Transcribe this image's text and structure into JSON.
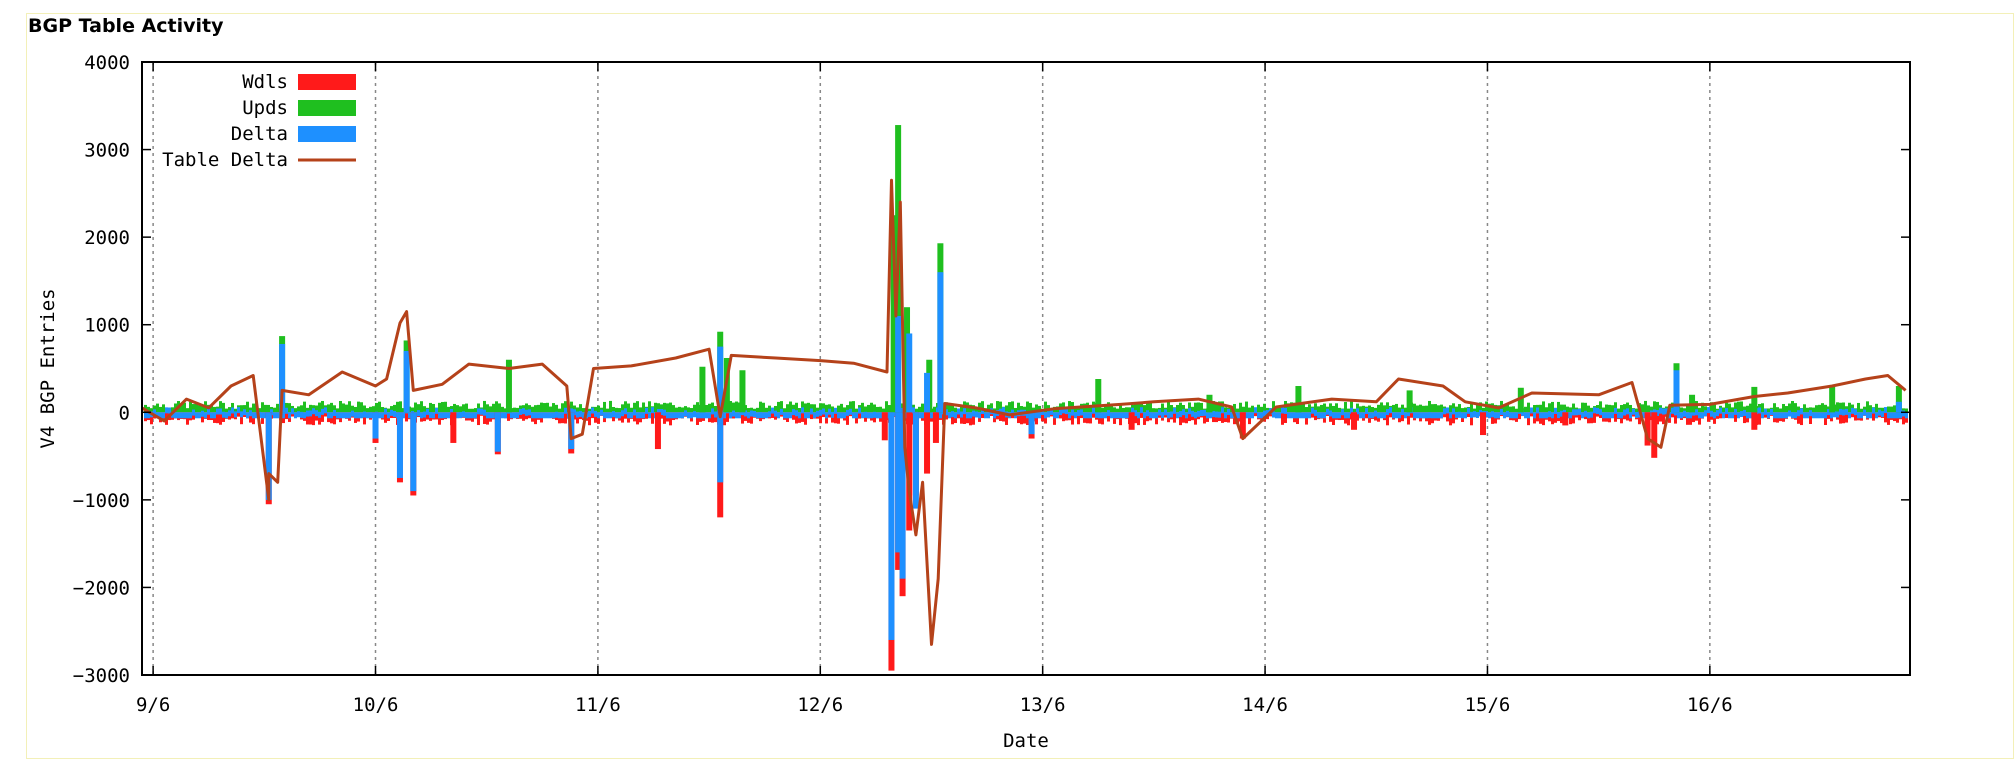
{
  "panel": {
    "title": "BGP Table Activity"
  },
  "chart_data": {
    "type": "bar",
    "title": "",
    "xlabel": "Date",
    "ylabel": "V4 BGP Entries",
    "ylim": [
      -3000,
      4000
    ],
    "yticks": [
      4000,
      3000,
      2000,
      1000,
      0,
      -1000,
      -2000,
      -3000
    ],
    "xlim": [
      8.95,
      16.9
    ],
    "xticks": [
      {
        "value": 9,
        "label": "9/6"
      },
      {
        "value": 10,
        "label": "10/6"
      },
      {
        "value": 11,
        "label": "11/6"
      },
      {
        "value": 12,
        "label": "12/6"
      },
      {
        "value": 13,
        "label": "13/6"
      },
      {
        "value": 14,
        "label": "14/6"
      },
      {
        "value": 15,
        "label": "15/6"
      },
      {
        "value": 16,
        "label": "16/6"
      }
    ],
    "grid": "vertical dotted",
    "legend_position": "top-left",
    "series": [
      {
        "name": "Wdls",
        "type": "bar",
        "color": "#ff1a1a",
        "points": [
          {
            "x": 9.52,
            "y": -1050
          },
          {
            "x": 10.0,
            "y": -350
          },
          {
            "x": 10.11,
            "y": -800
          },
          {
            "x": 10.17,
            "y": -950
          },
          {
            "x": 10.35,
            "y": -350
          },
          {
            "x": 10.55,
            "y": -480
          },
          {
            "x": 10.88,
            "y": -470
          },
          {
            "x": 11.27,
            "y": -420
          },
          {
            "x": 11.55,
            "y": -1200
          },
          {
            "x": 12.29,
            "y": -320
          },
          {
            "x": 12.32,
            "y": -2950
          },
          {
            "x": 12.35,
            "y": -1800
          },
          {
            "x": 12.37,
            "y": -2100
          },
          {
            "x": 12.4,
            "y": -1350
          },
          {
            "x": 12.43,
            "y": -950
          },
          {
            "x": 12.48,
            "y": -700
          },
          {
            "x": 12.52,
            "y": -350
          },
          {
            "x": 12.95,
            "y": -300
          },
          {
            "x": 13.4,
            "y": -200
          },
          {
            "x": 13.9,
            "y": -300
          },
          {
            "x": 14.4,
            "y": -200
          },
          {
            "x": 14.98,
            "y": -260
          },
          {
            "x": 15.35,
            "y": -150
          },
          {
            "x": 15.72,
            "y": -380
          },
          {
            "x": 15.75,
            "y": -520
          },
          {
            "x": 16.2,
            "y": -200
          }
        ]
      },
      {
        "name": "Upds",
        "type": "bar",
        "color": "#1fbf1f",
        "points": [
          {
            "x": 9.58,
            "y": 870
          },
          {
            "x": 10.14,
            "y": 820
          },
          {
            "x": 10.6,
            "y": 600
          },
          {
            "x": 11.47,
            "y": 520
          },
          {
            "x": 11.55,
            "y": 920
          },
          {
            "x": 11.58,
            "y": 620
          },
          {
            "x": 11.65,
            "y": 480
          },
          {
            "x": 12.35,
            "y": 3280
          },
          {
            "x": 12.33,
            "y": 2250
          },
          {
            "x": 12.39,
            "y": 1200
          },
          {
            "x": 12.49,
            "y": 600
          },
          {
            "x": 12.54,
            "y": 1930
          },
          {
            "x": 13.25,
            "y": 380
          },
          {
            "x": 13.75,
            "y": 200
          },
          {
            "x": 14.15,
            "y": 300
          },
          {
            "x": 14.65,
            "y": 250
          },
          {
            "x": 15.15,
            "y": 280
          },
          {
            "x": 15.85,
            "y": 560
          },
          {
            "x": 15.92,
            "y": 200
          },
          {
            "x": 16.2,
            "y": 290
          },
          {
            "x": 16.55,
            "y": 290
          },
          {
            "x": 16.85,
            "y": 300
          }
        ]
      },
      {
        "name": "Delta",
        "type": "bar",
        "color": "#1e90ff",
        "points": [
          {
            "x": 9.52,
            "y": -1000
          },
          {
            "x": 9.58,
            "y": 780
          },
          {
            "x": 10.0,
            "y": -300
          },
          {
            "x": 10.11,
            "y": -750
          },
          {
            "x": 10.14,
            "y": 700
          },
          {
            "x": 10.17,
            "y": -900
          },
          {
            "x": 10.55,
            "y": -450
          },
          {
            "x": 10.88,
            "y": -420
          },
          {
            "x": 11.55,
            "y": -800
          },
          {
            "x": 11.55,
            "y": 750
          },
          {
            "x": 12.32,
            "y": -2600
          },
          {
            "x": 12.35,
            "y": -1600
          },
          {
            "x": 12.35,
            "y": 1100
          },
          {
            "x": 12.37,
            "y": -1900
          },
          {
            "x": 12.4,
            "y": 900
          },
          {
            "x": 12.43,
            "y": -1100
          },
          {
            "x": 12.48,
            "y": 450
          },
          {
            "x": 12.54,
            "y": 1600
          },
          {
            "x": 12.95,
            "y": -250
          },
          {
            "x": 15.85,
            "y": 480
          },
          {
            "x": 16.85,
            "y": 120
          }
        ]
      },
      {
        "name": "Table Delta",
        "type": "line",
        "color": "#b5421a",
        "points": [
          {
            "x": 8.95,
            "y": 50
          },
          {
            "x": 9.05,
            "y": -100
          },
          {
            "x": 9.15,
            "y": 150
          },
          {
            "x": 9.25,
            "y": 50
          },
          {
            "x": 9.35,
            "y": 300
          },
          {
            "x": 9.45,
            "y": 420
          },
          {
            "x": 9.52,
            "y": -1000
          },
          {
            "x": 9.52,
            "y": -700
          },
          {
            "x": 9.56,
            "y": -800
          },
          {
            "x": 9.58,
            "y": 250
          },
          {
            "x": 9.7,
            "y": 200
          },
          {
            "x": 9.85,
            "y": 460
          },
          {
            "x": 10.0,
            "y": 300
          },
          {
            "x": 10.05,
            "y": 380
          },
          {
            "x": 10.11,
            "y": 1020
          },
          {
            "x": 10.14,
            "y": 1150
          },
          {
            "x": 10.17,
            "y": 250
          },
          {
            "x": 10.3,
            "y": 320
          },
          {
            "x": 10.42,
            "y": 550
          },
          {
            "x": 10.6,
            "y": 500
          },
          {
            "x": 10.75,
            "y": 550
          },
          {
            "x": 10.86,
            "y": 300
          },
          {
            "x": 10.88,
            "y": -300
          },
          {
            "x": 10.93,
            "y": -250
          },
          {
            "x": 10.98,
            "y": 500
          },
          {
            "x": 11.15,
            "y": 530
          },
          {
            "x": 11.35,
            "y": 620
          },
          {
            "x": 11.5,
            "y": 720
          },
          {
            "x": 11.55,
            "y": -50
          },
          {
            "x": 11.6,
            "y": 650
          },
          {
            "x": 11.8,
            "y": 620
          },
          {
            "x": 12.0,
            "y": 590
          },
          {
            "x": 12.15,
            "y": 560
          },
          {
            "x": 12.3,
            "y": 460
          },
          {
            "x": 12.32,
            "y": 2650
          },
          {
            "x": 12.34,
            "y": 1100
          },
          {
            "x": 12.36,
            "y": 2400
          },
          {
            "x": 12.38,
            "y": -400
          },
          {
            "x": 12.4,
            "y": -900
          },
          {
            "x": 12.43,
            "y": -1400
          },
          {
            "x": 12.46,
            "y": -800
          },
          {
            "x": 12.5,
            "y": -2650
          },
          {
            "x": 12.53,
            "y": -1900
          },
          {
            "x": 12.56,
            "y": 100
          },
          {
            "x": 12.7,
            "y": 50
          },
          {
            "x": 12.85,
            "y": -30
          },
          {
            "x": 13.05,
            "y": 40
          },
          {
            "x": 13.35,
            "y": 90
          },
          {
            "x": 13.5,
            "y": 120
          },
          {
            "x": 13.7,
            "y": 150
          },
          {
            "x": 13.85,
            "y": 60
          },
          {
            "x": 13.9,
            "y": -300
          },
          {
            "x": 14.05,
            "y": 60
          },
          {
            "x": 14.3,
            "y": 150
          },
          {
            "x": 14.5,
            "y": 120
          },
          {
            "x": 14.6,
            "y": 380
          },
          {
            "x": 14.8,
            "y": 300
          },
          {
            "x": 14.9,
            "y": 120
          },
          {
            "x": 15.05,
            "y": 50
          },
          {
            "x": 15.2,
            "y": 220
          },
          {
            "x": 15.5,
            "y": 200
          },
          {
            "x": 15.65,
            "y": 340
          },
          {
            "x": 15.72,
            "y": -300
          },
          {
            "x": 15.78,
            "y": -400
          },
          {
            "x": 15.82,
            "y": 80
          },
          {
            "x": 16.0,
            "y": 90
          },
          {
            "x": 16.2,
            "y": 180
          },
          {
            "x": 16.35,
            "y": 220
          },
          {
            "x": 16.55,
            "y": 300
          },
          {
            "x": 16.7,
            "y": 380
          },
          {
            "x": 16.8,
            "y": 420
          },
          {
            "x": 16.88,
            "y": 250
          }
        ]
      }
    ]
  }
}
